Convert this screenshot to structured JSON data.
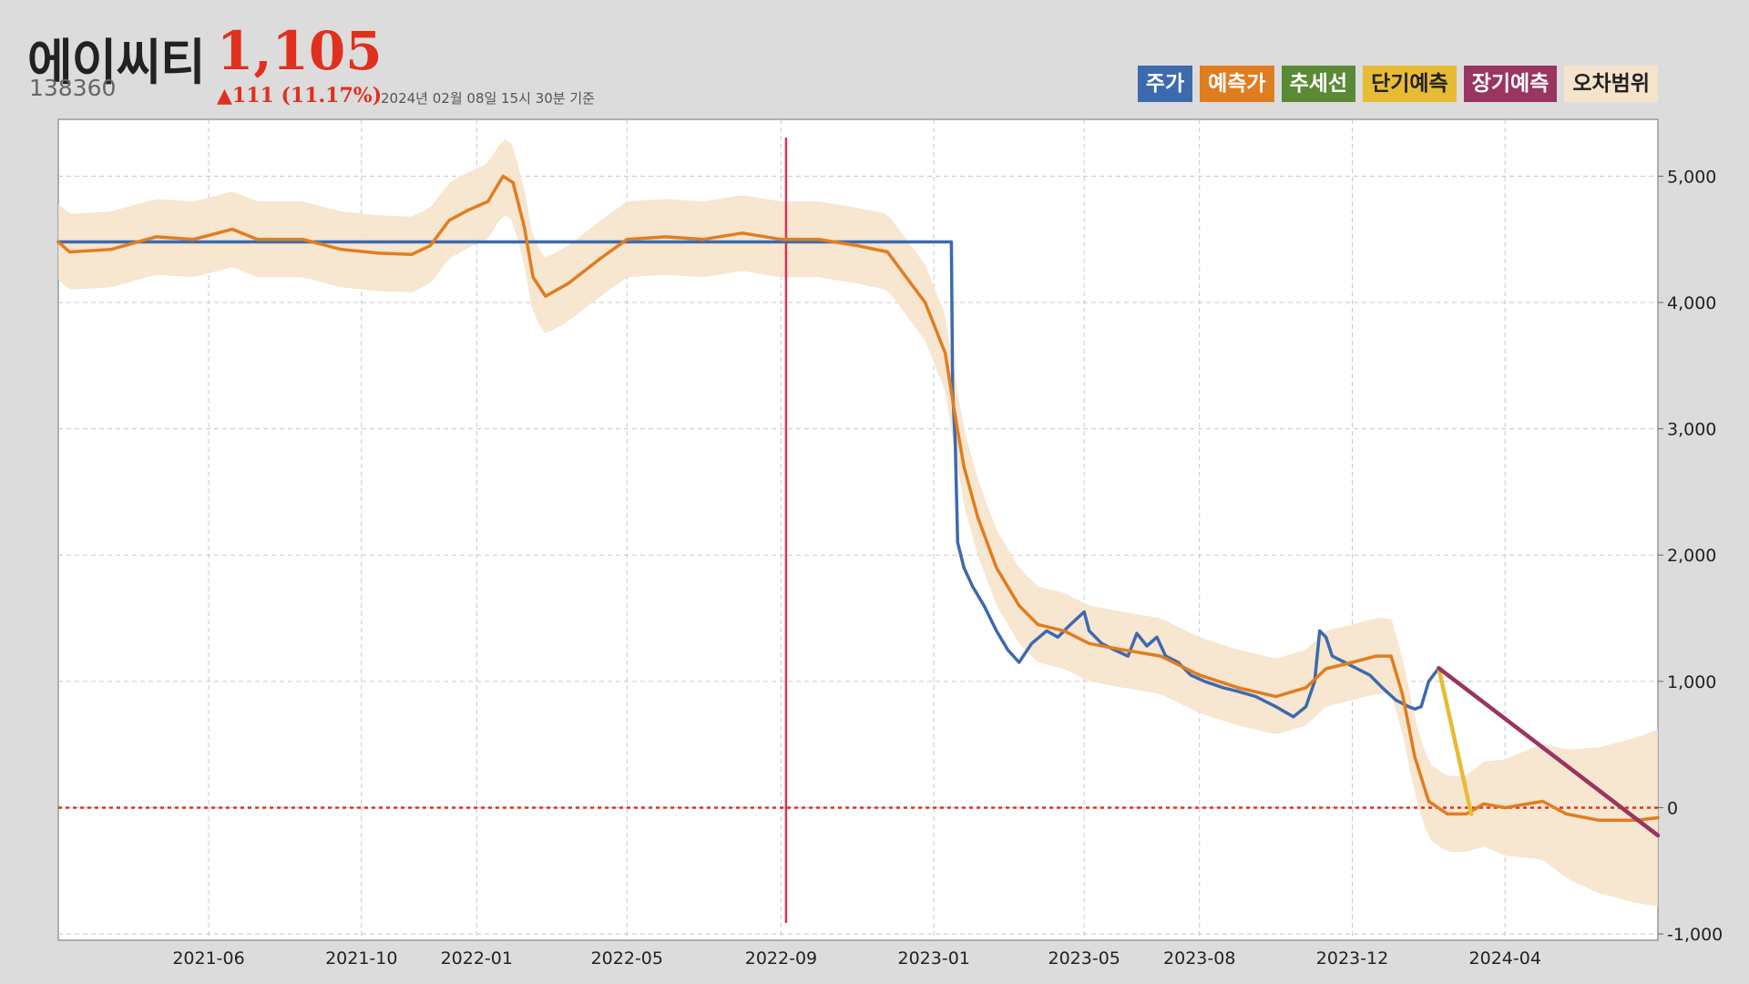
{
  "header": {
    "name": "에이씨티",
    "price": "1,105",
    "code": "138360",
    "change": "▲111 (11.17%)",
    "as_of": "2024년 02월 08일 15시 30분 기준"
  },
  "legend": [
    {
      "label": "주가",
      "color": "#3d6aad",
      "text_color": "#ffffff"
    },
    {
      "label": "예측가",
      "color": "#e07d20",
      "text_color": "#ffffff"
    },
    {
      "label": "추세선",
      "color": "#5a8a35",
      "text_color": "#ffffff"
    },
    {
      "label": "단기예측",
      "color": "#e8bb35",
      "text_color": "#222222"
    },
    {
      "label": "장기예측",
      "color": "#993560",
      "text_color": "#ffffff"
    },
    {
      "label": "오차범위",
      "color": "#f6e3cb",
      "text_color": "#222222"
    }
  ],
  "chart_data": {
    "type": "line",
    "xlim": [
      "2021-02-01",
      "2024-08-01"
    ],
    "ylim": [
      -1050,
      5450
    ],
    "x_ticks": [
      "2021-06",
      "2021-10",
      "2022-01",
      "2022-05",
      "2022-09",
      "2023-01",
      "2023-05",
      "2023-08",
      "2023-12",
      "2024-04"
    ],
    "y_ticks": [
      5000,
      4000,
      3000,
      2000,
      1000,
      0,
      -1000
    ],
    "y_tick_labels": [
      "5,000",
      "4,000",
      "3,000",
      "2,000",
      "1,000",
      "0",
      "-1,000"
    ],
    "grid": true,
    "legend_position": "top-right",
    "vertical_marker": "2022-09-05",
    "zero_line": 0,
    "error_band_halfwidth": 300,
    "series": [
      {
        "name": "주가",
        "color": "#3d6aad",
        "points": [
          [
            "2021-02-01",
            4480
          ],
          [
            "2023-01-15",
            4480
          ],
          [
            "2023-01-16",
            3300
          ],
          [
            "2023-01-18",
            2900
          ],
          [
            "2023-01-20",
            2100
          ],
          [
            "2023-01-25",
            1900
          ],
          [
            "2023-02-01",
            1750
          ],
          [
            "2023-02-10",
            1600
          ],
          [
            "2023-02-20",
            1400
          ],
          [
            "2023-03-01",
            1250
          ],
          [
            "2023-03-10",
            1150
          ],
          [
            "2023-03-20",
            1300
          ],
          [
            "2023-04-01",
            1400
          ],
          [
            "2023-04-10",
            1350
          ],
          [
            "2023-04-20",
            1450
          ],
          [
            "2023-05-01",
            1550
          ],
          [
            "2023-05-05",
            1400
          ],
          [
            "2023-05-15",
            1300
          ],
          [
            "2023-05-25",
            1250
          ],
          [
            "2023-06-05",
            1200
          ],
          [
            "2023-06-12",
            1380
          ],
          [
            "2023-06-20",
            1280
          ],
          [
            "2023-06-28",
            1350
          ],
          [
            "2023-07-05",
            1200
          ],
          [
            "2023-07-15",
            1150
          ],
          [
            "2023-07-25",
            1050
          ],
          [
            "2023-08-05",
            1000
          ],
          [
            "2023-08-20",
            950
          ],
          [
            "2023-09-01",
            920
          ],
          [
            "2023-09-15",
            880
          ],
          [
            "2023-10-01",
            800
          ],
          [
            "2023-10-15",
            720
          ],
          [
            "2023-10-25",
            800
          ],
          [
            "2023-11-01",
            1000
          ],
          [
            "2023-11-05",
            1400
          ],
          [
            "2023-11-10",
            1350
          ],
          [
            "2023-11-15",
            1200
          ],
          [
            "2023-11-25",
            1150
          ],
          [
            "2023-12-05",
            1100
          ],
          [
            "2023-12-15",
            1050
          ],
          [
            "2023-12-25",
            950
          ],
          [
            "2024-01-05",
            850
          ],
          [
            "2024-01-15",
            800
          ],
          [
            "2024-01-20",
            780
          ],
          [
            "2024-01-25",
            800
          ],
          [
            "2024-01-31",
            1000
          ],
          [
            "2024-02-08",
            1105
          ]
        ]
      },
      {
        "name": "예측가",
        "color": "#e07d20",
        "points": [
          [
            "2021-02-01",
            4480
          ],
          [
            "2021-02-10",
            4400
          ],
          [
            "2021-03-15",
            4420
          ],
          [
            "2021-04-20",
            4520
          ],
          [
            "2021-05-20",
            4500
          ],
          [
            "2021-06-20",
            4580
          ],
          [
            "2021-07-10",
            4500
          ],
          [
            "2021-08-15",
            4500
          ],
          [
            "2021-09-15",
            4420
          ],
          [
            "2021-10-15",
            4390
          ],
          [
            "2021-11-10",
            4380
          ],
          [
            "2021-11-25",
            4450
          ],
          [
            "2021-12-10",
            4650
          ],
          [
            "2021-12-25",
            4730
          ],
          [
            "2022-01-10",
            4800
          ],
          [
            "2022-01-22",
            5000
          ],
          [
            "2022-01-30",
            4950
          ],
          [
            "2022-02-08",
            4600
          ],
          [
            "2022-02-15",
            4200
          ],
          [
            "2022-02-25",
            4050
          ],
          [
            "2022-03-15",
            4150
          ],
          [
            "2022-04-10",
            4350
          ],
          [
            "2022-05-01",
            4500
          ],
          [
            "2022-06-01",
            4520
          ],
          [
            "2022-07-01",
            4500
          ],
          [
            "2022-08-01",
            4550
          ],
          [
            "2022-09-01",
            4500
          ],
          [
            "2022-10-01",
            4500
          ],
          [
            "2022-11-01",
            4450
          ],
          [
            "2022-11-25",
            4400
          ],
          [
            "2022-12-10",
            4200
          ],
          [
            "2022-12-25",
            4000
          ],
          [
            "2023-01-10",
            3600
          ],
          [
            "2023-01-18",
            3100
          ],
          [
            "2023-01-25",
            2700
          ],
          [
            "2023-02-05",
            2300
          ],
          [
            "2023-02-20",
            1900
          ],
          [
            "2023-03-10",
            1600
          ],
          [
            "2023-03-25",
            1450
          ],
          [
            "2023-04-15",
            1400
          ],
          [
            "2023-05-05",
            1300
          ],
          [
            "2023-06-01",
            1250
          ],
          [
            "2023-07-01",
            1200
          ],
          [
            "2023-08-01",
            1050
          ],
          [
            "2023-09-01",
            950
          ],
          [
            "2023-10-01",
            880
          ],
          [
            "2023-10-25",
            950
          ],
          [
            "2023-11-10",
            1100
          ],
          [
            "2023-12-01",
            1150
          ],
          [
            "2023-12-20",
            1200
          ],
          [
            "2024-01-01",
            1200
          ],
          [
            "2024-01-10",
            900
          ],
          [
            "2024-01-20",
            400
          ],
          [
            "2024-01-31",
            50
          ],
          [
            "2024-02-15",
            -50
          ],
          [
            "2024-03-01",
            -50
          ],
          [
            "2024-03-15",
            30
          ],
          [
            "2024-04-01",
            0
          ],
          [
            "2024-05-01",
            50
          ],
          [
            "2024-05-20",
            -50
          ],
          [
            "2024-06-15",
            -100
          ],
          [
            "2024-07-15",
            -100
          ],
          [
            "2024-08-01",
            -80
          ]
        ]
      },
      {
        "name": "단기예측",
        "color": "#e8bb35",
        "points": [
          [
            "2024-02-08",
            1105
          ],
          [
            "2024-03-05",
            -50
          ]
        ]
      },
      {
        "name": "장기예측",
        "color": "#993560",
        "points": [
          [
            "2024-02-08",
            1105
          ],
          [
            "2024-08-01",
            -220
          ]
        ]
      }
    ]
  }
}
